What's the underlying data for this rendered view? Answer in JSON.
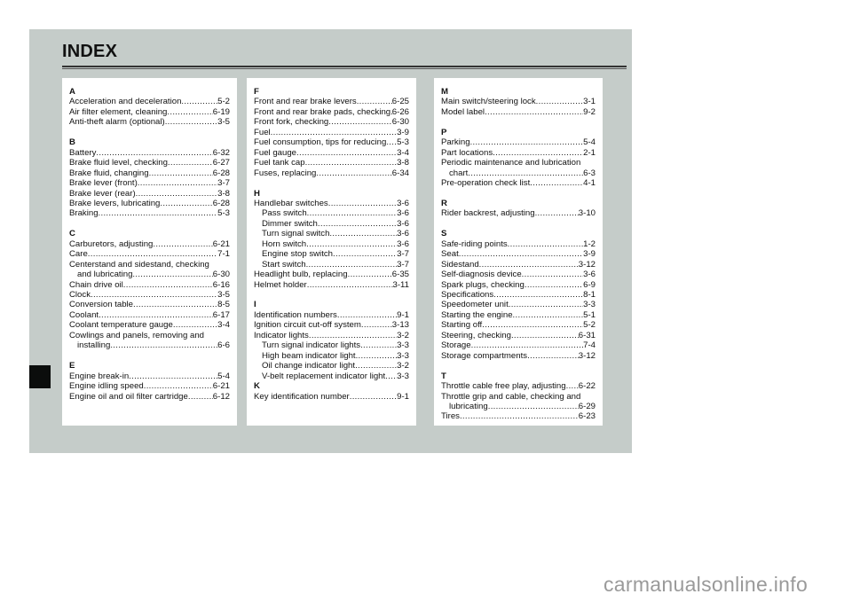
{
  "title": "INDEX",
  "columns": [
    [
      {
        "letter": "A",
        "entries": [
          {
            "text": "Acceleration and deceleration",
            "page": "5-2"
          },
          {
            "text": "Air filter element, cleaning",
            "page": "6-19"
          },
          {
            "text": "Anti-theft alarm (optional)",
            "page": "3-5"
          }
        ]
      },
      {
        "letter": "B",
        "entries": [
          {
            "text": "Battery",
            "page": "6-32"
          },
          {
            "text": "Brake fluid level, checking",
            "page": "6-27"
          },
          {
            "text": "Brake fluid, changing",
            "page": "6-28"
          },
          {
            "text": "Brake lever (front)",
            "page": "3-7"
          },
          {
            "text": "Brake lever (rear)",
            "page": "3-8"
          },
          {
            "text": "Brake levers, lubricating",
            "page": "6-28"
          },
          {
            "text": "Braking",
            "page": "5-3"
          }
        ]
      },
      {
        "letter": "C",
        "entries": [
          {
            "text": "Carburetors, adjusting",
            "page": "6-21"
          },
          {
            "text": "Care",
            "page": "7-1"
          },
          {
            "head": "Centerstand and sidestand, checking",
            "text": "and lubricating",
            "page": "6-30"
          },
          {
            "text": "Chain drive oil",
            "page": "6-16"
          },
          {
            "text": "Clock",
            "page": "3-5"
          },
          {
            "text": "Conversion table",
            "page": "8-5"
          },
          {
            "text": "Coolant",
            "page": "6-17"
          },
          {
            "text": "Coolant temperature gauge",
            "page": "3-4"
          },
          {
            "head": "Cowlings and panels, removing and",
            "text": "installing",
            "page": "6-6"
          }
        ]
      },
      {
        "letter": "E",
        "entries": [
          {
            "text": "Engine break-in",
            "page": "5-4"
          },
          {
            "text": "Engine idling speed",
            "page": "6-21"
          },
          {
            "text": "Engine oil and oil filter cartridge",
            "page": "6-12"
          }
        ]
      }
    ],
    [
      {
        "letter": "F",
        "entries": [
          {
            "text": "Front and rear brake levers",
            "page": "6-25"
          },
          {
            "text": "Front and rear brake pads, checking",
            "page": "6-26"
          },
          {
            "text": "Front fork, checking",
            "page": "6-30"
          },
          {
            "text": "Fuel",
            "page": "3-9"
          },
          {
            "text": "Fuel consumption, tips for reducing",
            "page": "5-3"
          },
          {
            "text": "Fuel gauge",
            "page": "3-4"
          },
          {
            "text": "Fuel tank cap",
            "page": "3-8"
          },
          {
            "text": "Fuses, replacing",
            "page": "6-34"
          }
        ]
      },
      {
        "letter": "H",
        "entries": [
          {
            "text": "Handlebar switches",
            "page": "3-6"
          },
          {
            "text": "Pass switch",
            "page": "3-6",
            "indent": true
          },
          {
            "text": "Dimmer switch",
            "page": "3-6",
            "indent": true
          },
          {
            "text": "Turn signal switch",
            "page": "3-6",
            "indent": true
          },
          {
            "text": "Horn switch",
            "page": "3-6",
            "indent": true
          },
          {
            "text": "Engine stop switch",
            "page": "3-7",
            "indent": true
          },
          {
            "text": "Start switch",
            "page": "3-7",
            "indent": true
          },
          {
            "text": "Headlight bulb, replacing",
            "page": "6-35"
          },
          {
            "text": "Helmet holder",
            "page": "3-11"
          }
        ]
      },
      {
        "letter": "I",
        "tight": true,
        "entries": [
          {
            "text": "Identification numbers",
            "page": "9-1"
          },
          {
            "text": "Ignition circuit cut-off system",
            "page": "3-13"
          },
          {
            "text": "Indicator lights",
            "page": "3-2"
          },
          {
            "text": "Turn signal indicator lights",
            "page": "3-3",
            "indent": true
          },
          {
            "text": "High beam indicator light",
            "page": "3-3",
            "indent": true
          },
          {
            "text": "Oil change indicator light",
            "page": "3-2",
            "indent": true
          },
          {
            "text": "V-belt replacement indicator light",
            "page": "3-3",
            "indent": true
          }
        ]
      },
      {
        "letter": "K",
        "entries": [
          {
            "text": "Key identification number",
            "page": "9-1"
          }
        ]
      }
    ],
    [
      {
        "letter": "M",
        "entries": [
          {
            "text": "Main switch/steering lock",
            "page": "3-1"
          },
          {
            "text": "Model label",
            "page": "9-2"
          }
        ]
      },
      {
        "letter": "P",
        "entries": [
          {
            "text": "Parking",
            "page": "5-4"
          },
          {
            "text": "Part locations",
            "page": "2-1"
          },
          {
            "head": "Periodic maintenance and lubrication",
            "text": "chart",
            "page": "6-3"
          },
          {
            "text": "Pre-operation check list",
            "page": "4-1"
          }
        ]
      },
      {
        "letter": "R",
        "entries": [
          {
            "text": "Rider backrest, adjusting",
            "page": "3-10"
          }
        ]
      },
      {
        "letter": "S",
        "entries": [
          {
            "text": "Safe-riding points",
            "page": "1-2"
          },
          {
            "text": "Seat",
            "page": "3-9"
          },
          {
            "text": "Sidestand",
            "page": "3-12"
          },
          {
            "text": "Self-diagnosis device",
            "page": "3-6"
          },
          {
            "text": "Spark plugs, checking",
            "page": "6-9"
          },
          {
            "text": "Specifications",
            "page": "8-1"
          },
          {
            "text": "Speedometer unit",
            "page": "3-3"
          },
          {
            "text": "Starting the engine",
            "page": "5-1"
          },
          {
            "text": "Starting off",
            "page": "5-2"
          },
          {
            "text": "Steering, checking",
            "page": "6-31"
          },
          {
            "text": "Storage",
            "page": "7-4"
          },
          {
            "text": "Storage compartments",
            "page": "3-12"
          }
        ]
      },
      {
        "letter": "T",
        "entries": [
          {
            "text": "Throttle cable free play, adjusting",
            "page": "6-22"
          },
          {
            "head": "Throttle grip and cable, checking and",
            "text": "lubricating",
            "page": "6-29"
          },
          {
            "text": "Tires",
            "page": "6-23"
          }
        ]
      }
    ]
  ],
  "watermark": "carmanualsonline.info"
}
